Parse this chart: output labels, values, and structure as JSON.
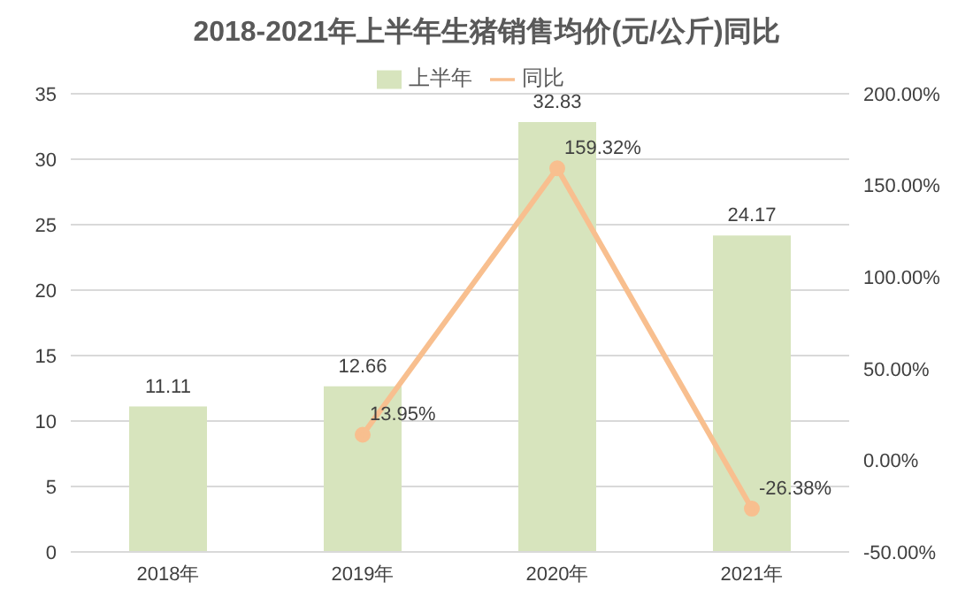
{
  "chart_data": {
    "type": "bar",
    "title": "2018-2021年上半年生猪销售均价(元/公斤)同比",
    "categories": [
      "2018年",
      "2019年",
      "2020年",
      "2021年"
    ],
    "series": [
      {
        "name": "上半年",
        "color": "#d7e4bd",
        "values": [
          11.11,
          12.66,
          32.83,
          24.17
        ],
        "value_labels": [
          "11.11",
          "12.66",
          "32.83",
          "24.17"
        ]
      },
      {
        "name": "同比",
        "type": "line",
        "axis": "y2",
        "color": "#f8bf8f",
        "values": [
          null,
          13.95,
          159.32,
          -26.38
        ],
        "value_labels": [
          null,
          "13.95%",
          "159.32%",
          "-26.38%"
        ]
      }
    ],
    "ylim": [
      0,
      35
    ],
    "yticks": [
      0,
      5,
      10,
      15,
      20,
      25,
      30,
      35
    ],
    "y2lim": [
      -50,
      200
    ],
    "y2ticks": [
      {
        "value": -50,
        "label": "-50.00%"
      },
      {
        "value": 0,
        "label": "0.00%"
      },
      {
        "value": 50,
        "label": "50.00%"
      },
      {
        "value": 100,
        "label": "100.00%"
      },
      {
        "value": 150,
        "label": "150.00%"
      },
      {
        "value": 200,
        "label": "200.00%"
      }
    ],
    "grid": "y",
    "legend": "top",
    "marker": "circle"
  }
}
